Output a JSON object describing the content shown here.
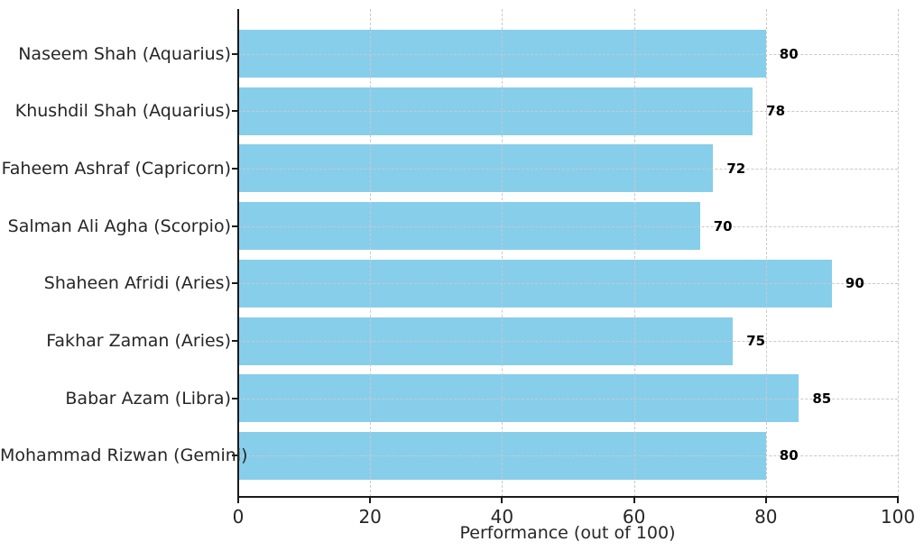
{
  "chart": {
    "bar_color": "#87CEEB",
    "grid_color": "#c9c9c9",
    "spine_color": "#1a1a1a",
    "text_color": "#262626",
    "value_label_color": "#000000"
  },
  "chart_data": {
    "type": "bar",
    "orientation": "horizontal",
    "title": "",
    "xlabel": "Performance (out of 100)",
    "ylabel": "",
    "xlim": [
      0,
      100
    ],
    "xticks": [
      0,
      20,
      40,
      60,
      80,
      100
    ],
    "grid": true,
    "legend": false,
    "categories": [
      "Naseem Shah (Aquarius)",
      "Khushdil Shah (Aquarius)",
      "Faheem Ashraf (Capricorn)",
      "Salman Ali Agha (Scorpio)",
      "Shaheen Afridi (Aries)",
      "Fakhar Zaman (Aries)",
      "Babar Azam (Libra)",
      "Mohammad Rizwan (Gemini)"
    ],
    "values": [
      80,
      78,
      72,
      70,
      90,
      75,
      85,
      80
    ],
    "value_labels": [
      "80",
      "78",
      "72",
      "70",
      "90",
      "75",
      "85",
      "80"
    ],
    "xtick_labels": [
      "0",
      "20",
      "40",
      "60",
      "80",
      "100"
    ]
  }
}
